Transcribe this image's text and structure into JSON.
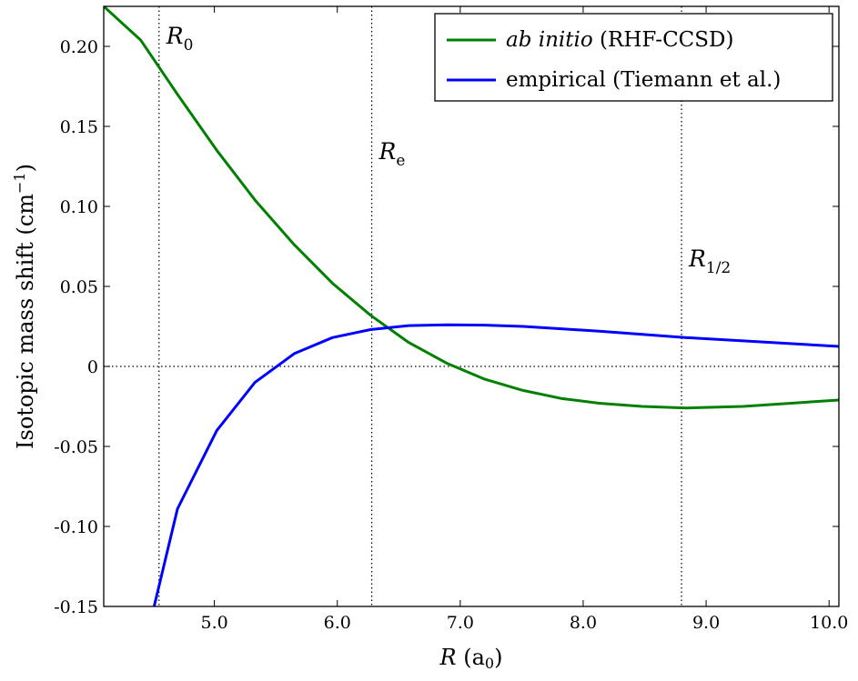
{
  "chart_data": {
    "type": "line",
    "xlabel_symbol": "R",
    "xlabel_unit": "(a",
    "xlabel_unit_sub": "0",
    "xlabel_unit_close": ")",
    "ylabel_main": "Isotopic mass shift (cm",
    "ylabel_sup": "−1",
    "ylabel_close": ")",
    "xlim": [
      4.1,
      10.08
    ],
    "ylim": [
      -0.15,
      0.225
    ],
    "x_ticks": [
      5.0,
      6.0,
      7.0,
      8.0,
      9.0,
      10.0
    ],
    "x_tick_labels": [
      "5.0",
      "6.0",
      "7.0",
      "8.0",
      "9.0",
      "10.0"
    ],
    "y_ticks": [
      -0.15,
      -0.1,
      -0.05,
      0,
      0.05,
      0.1,
      0.15,
      0.2
    ],
    "y_tick_labels": [
      "-0.15",
      "-0.10",
      "-0.05",
      "0",
      "0.05",
      "0.10",
      "0.15",
      "0.20"
    ],
    "grid": false,
    "legend_position": "top-right",
    "reference_lines": [
      {
        "x": 4.55,
        "label": "R",
        "sub": "0"
      },
      {
        "x": 6.28,
        "label": "R",
        "sub": "e"
      },
      {
        "x": 8.8,
        "label": "R",
        "sub": "1/2"
      }
    ],
    "zero_line": true,
    "series": [
      {
        "name_italic": "ab initio",
        "name_rest": " (RHF-CCSD)",
        "color": "#008000",
        "x": [
          4.1,
          4.4,
          4.7,
          5.02,
          5.33,
          5.65,
          5.96,
          6.27,
          6.58,
          6.89,
          7.2,
          7.51,
          7.82,
          8.13,
          8.48,
          8.84,
          9.3,
          10.08
        ],
        "y": [
          0.225,
          0.204,
          0.17,
          0.135,
          0.104,
          0.076,
          0.052,
          0.032,
          0.015,
          0.002,
          -0.008,
          -0.015,
          -0.02,
          -0.023,
          -0.025,
          -0.026,
          -0.025,
          -0.021
        ]
      },
      {
        "name_italic": "",
        "name_rest": "empirical (Tiemann et al.)",
        "color": "#0000ff",
        "x": [
          4.51,
          4.7,
          5.02,
          5.33,
          5.65,
          5.96,
          6.27,
          6.58,
          6.89,
          7.2,
          7.51,
          7.82,
          8.13,
          8.48,
          8.84,
          9.3,
          10.08
        ],
        "y": [
          -0.15,
          -0.089,
          -0.04,
          -0.01,
          0.008,
          0.018,
          0.023,
          0.0255,
          0.026,
          0.0258,
          0.025,
          0.0235,
          0.022,
          0.02,
          0.018,
          0.016,
          0.0125
        ]
      }
    ]
  }
}
